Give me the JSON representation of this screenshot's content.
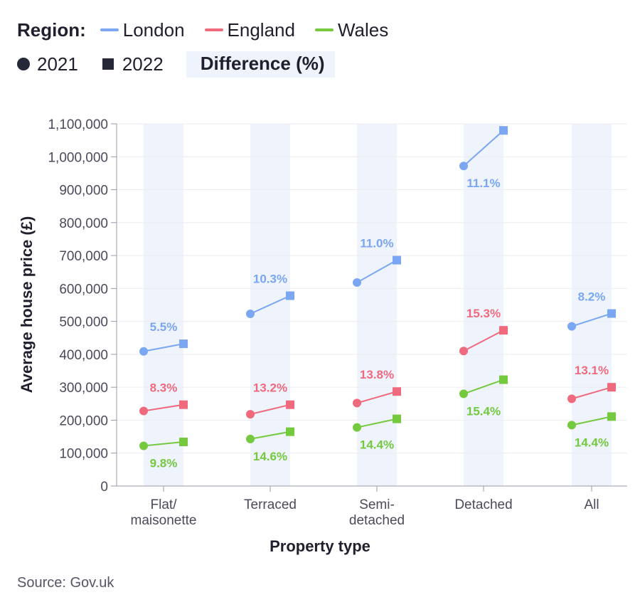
{
  "legend": {
    "region_title": "Region:",
    "regions": [
      {
        "name": "London",
        "color": "#7aa6f2"
      },
      {
        "name": "England",
        "color": "#f06a7e"
      },
      {
        "name": "Wales",
        "color": "#74c93f"
      }
    ],
    "year_2021": "2021",
    "year_2022": "2022",
    "difference_label": "Difference  (%)"
  },
  "source": "Source: Gov.uk",
  "chart_data": {
    "type": "scatter",
    "xlabel": "Property type",
    "ylabel": "Average house price (£)",
    "ylim": [
      0,
      1100000
    ],
    "yticks": [
      0,
      100000,
      200000,
      300000,
      400000,
      500000,
      600000,
      700000,
      800000,
      900000,
      1000000,
      1100000
    ],
    "ytick_labels": [
      "0",
      "100,000",
      "200,000",
      "300,000",
      "400,000",
      "500,000",
      "600,000",
      "700,000",
      "800,000",
      "900,000",
      "1,000,000",
      "1,100,000"
    ],
    "categories": [
      {
        "lines": [
          "Flat/",
          "maisonette"
        ]
      },
      {
        "lines": [
          "Terraced"
        ]
      },
      {
        "lines": [
          "Semi-",
          "detached"
        ]
      },
      {
        "lines": [
          "Detached"
        ]
      },
      {
        "lines": [
          "All"
        ]
      }
    ],
    "grid": true,
    "series": [
      {
        "name": "London",
        "color": "#7aa6f2",
        "values_2021": [
          409000,
          523000,
          618000,
          972000,
          485000
        ],
        "values_2022": [
          432000,
          578000,
          686000,
          1080000,
          524000
        ],
        "difference": [
          "5.5%",
          "10.3%",
          "11.0%",
          "11.1%",
          "8.2%"
        ],
        "label_pos": [
          "above",
          "above",
          "above",
          "below",
          "above"
        ]
      },
      {
        "name": "England",
        "color": "#f06a7e",
        "values_2021": [
          228000,
          218000,
          252000,
          410000,
          265000
        ],
        "values_2022": [
          247000,
          247000,
          287000,
          473000,
          300000
        ],
        "difference": [
          "8.3%",
          "13.2%",
          "13.8%",
          "15.3%",
          "13.1%"
        ],
        "label_pos": [
          "above",
          "above",
          "above",
          "above",
          "above"
        ]
      },
      {
        "name": "Wales",
        "color": "#74c93f",
        "values_2021": [
          122000,
          143000,
          178000,
          280000,
          185000
        ],
        "values_2022": [
          134000,
          165000,
          204000,
          323000,
          211000
        ],
        "difference": [
          "9.8%",
          "14.6%",
          "14.4%",
          "15.4%",
          "14.4%"
        ],
        "label_pos": [
          "below",
          "below",
          "below",
          "below",
          "below"
        ]
      }
    ]
  }
}
